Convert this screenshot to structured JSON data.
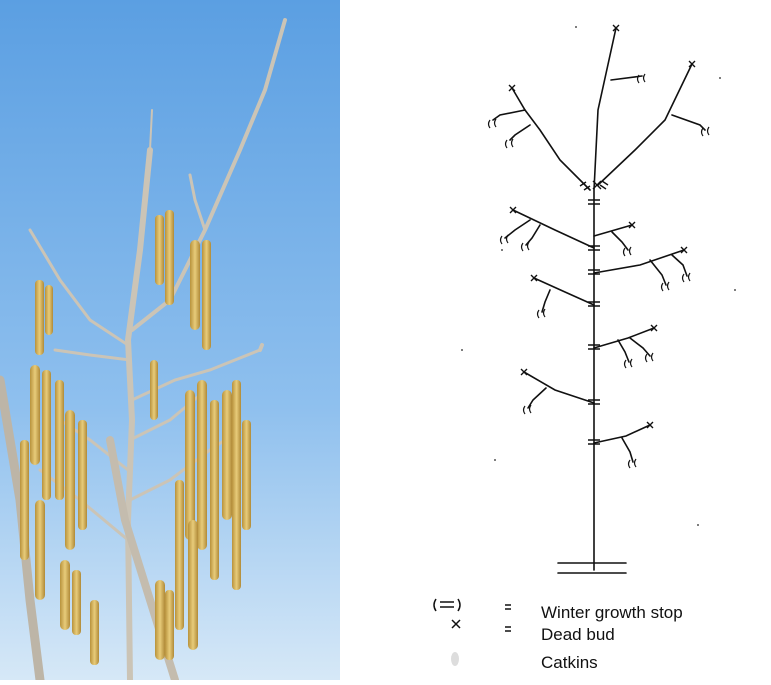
{
  "photo": {
    "sky_top": "#5b9fe2",
    "sky_bottom": "#cfe3f6",
    "branch_color": "#c9c2b5",
    "catkin_color": "#d9b65a"
  },
  "legend": {
    "items": [
      {
        "symbol": "(=)",
        "equals": "=",
        "label": "Winter growth stop"
      },
      {
        "symbol": "x",
        "equals": "=",
        "label": "Dead bud"
      },
      {
        "symbol": "catkin",
        "equals": "",
        "label": "Catkins"
      }
    ]
  }
}
